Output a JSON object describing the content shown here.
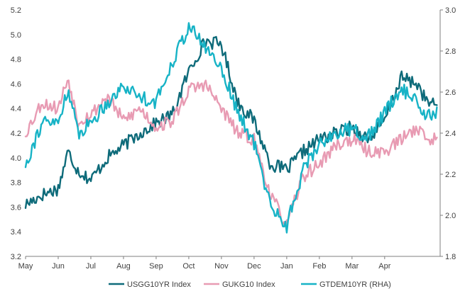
{
  "chart_data": {
    "type": "line",
    "title": "",
    "xlabel": "",
    "ylabel": "",
    "y2label": "",
    "x_tick_labels": [
      "May",
      "Jun",
      "Jul",
      "Aug",
      "Sep",
      "Oct",
      "Nov",
      "Dec",
      "Jan",
      "Feb",
      "Mar",
      "Apr"
    ],
    "x_range": [
      0,
      12.7
    ],
    "ylim_left": [
      3.2,
      5.2
    ],
    "ylim_right": [
      1.8,
      3.0
    ],
    "yticks_left": [
      "3.2",
      "3.4",
      "3.6",
      "3.8",
      "4.0",
      "4.2",
      "4.4",
      "4.6",
      "4.8",
      "5.0",
      "5.2"
    ],
    "yticks_right": [
      "1.8",
      "2.0",
      "2.2",
      "2.4",
      "2.6",
      "2.8",
      "3.0"
    ],
    "grid": false,
    "legend_position": "bottom",
    "series": [
      {
        "name": "USGG10YR Index",
        "axis": "left",
        "color": "#0e6b7a",
        "x": [
          0.0,
          0.5,
          1.0,
          1.3,
          1.6,
          2.0,
          2.5,
          3.0,
          3.5,
          4.0,
          4.5,
          5.0,
          5.5,
          6.0,
          6.5,
          7.0,
          7.5,
          8.0,
          8.5,
          9.0,
          9.5,
          10.0,
          10.5,
          11.0,
          11.5,
          12.0,
          12.3,
          12.6
        ],
        "y": [
          3.62,
          3.7,
          3.75,
          4.05,
          3.9,
          3.82,
          4.0,
          4.1,
          4.2,
          4.28,
          4.35,
          4.7,
          4.95,
          4.92,
          4.45,
          4.3,
          3.95,
          3.9,
          4.05,
          4.15,
          4.2,
          4.25,
          4.15,
          4.3,
          4.65,
          4.6,
          4.45,
          4.42
        ]
      },
      {
        "name": "GUKG10 Index",
        "axis": "left",
        "color": "#e89bb3",
        "x": [
          0.0,
          0.5,
          1.0,
          1.3,
          1.6,
          2.0,
          2.5,
          3.0,
          3.5,
          4.0,
          4.5,
          5.0,
          5.5,
          6.0,
          6.5,
          7.0,
          7.5,
          8.0,
          8.5,
          9.0,
          9.5,
          10.0,
          10.5,
          11.0,
          11.5,
          12.0,
          12.3,
          12.6
        ],
        "y": [
          4.2,
          4.45,
          4.4,
          4.65,
          4.3,
          4.35,
          4.5,
          4.3,
          4.4,
          4.25,
          4.3,
          4.55,
          4.6,
          4.4,
          4.2,
          4.15,
          3.7,
          3.45,
          3.85,
          3.95,
          4.1,
          4.15,
          4.05,
          4.05,
          4.15,
          4.25,
          4.15,
          4.15
        ]
      },
      {
        "name": "GTDEM10YR (RHA)",
        "axis": "right",
        "color": "#17b3c6",
        "x": [
          0.0,
          0.5,
          1.0,
          1.3,
          1.6,
          2.0,
          2.5,
          3.0,
          3.5,
          4.0,
          4.5,
          5.0,
          5.5,
          6.0,
          6.5,
          7.0,
          7.5,
          8.0,
          8.5,
          9.0,
          9.5,
          10.0,
          10.5,
          11.0,
          11.5,
          12.0,
          12.3,
          12.6
        ],
        "y": [
          2.25,
          2.45,
          2.45,
          2.62,
          2.4,
          2.45,
          2.55,
          2.63,
          2.58,
          2.55,
          2.75,
          2.92,
          2.82,
          2.72,
          2.5,
          2.35,
          2.05,
          1.95,
          2.22,
          2.35,
          2.4,
          2.42,
          2.38,
          2.5,
          2.62,
          2.55,
          2.48,
          2.5
        ]
      }
    ]
  }
}
